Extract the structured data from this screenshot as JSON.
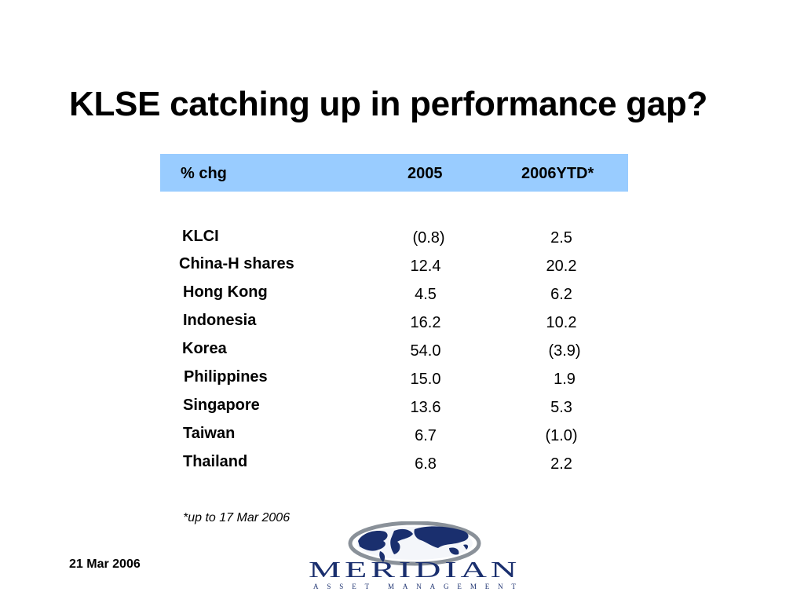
{
  "title": "KLSE catching up in performance gap?",
  "table": {
    "headers": [
      "% chg",
      "2005",
      "2006YTD*"
    ],
    "rows": [
      {
        "market": "KLCI",
        "y2005": "(0.8)",
        "ytd2006": "2.5"
      },
      {
        "market": "China-H shares",
        "y2005": "12.4",
        "ytd2006": "20.2"
      },
      {
        "market": "Hong Kong",
        "y2005": "4.5",
        "ytd2006": "6.2"
      },
      {
        "market": "Indonesia",
        "y2005": "16.2",
        "ytd2006": "10.2"
      },
      {
        "market": "Korea",
        "y2005": "54.0",
        "ytd2006": "(3.9)"
      },
      {
        "market": "Philippines",
        "y2005": "15.0",
        "ytd2006": "1.9"
      },
      {
        "market": "Singapore",
        "y2005": "13.6",
        "ytd2006": "5.3"
      },
      {
        "market": "Taiwan",
        "y2005": "6.7",
        "ytd2006": "(1.0)"
      },
      {
        "market": "Thailand",
        "y2005": "6.8",
        "ytd2006": "2.2"
      }
    ]
  },
  "footnote": "*up to 17 Mar 2006",
  "date": "21 Mar 2006",
  "logo": {
    "name": "MERIDIAN",
    "tagline": "ASSET MANAGEMENT",
    "globe_color": "#1a2f6e",
    "ring_color": "#8a9199"
  },
  "colors": {
    "header_bg": "#99ccff",
    "text": "#000000"
  }
}
